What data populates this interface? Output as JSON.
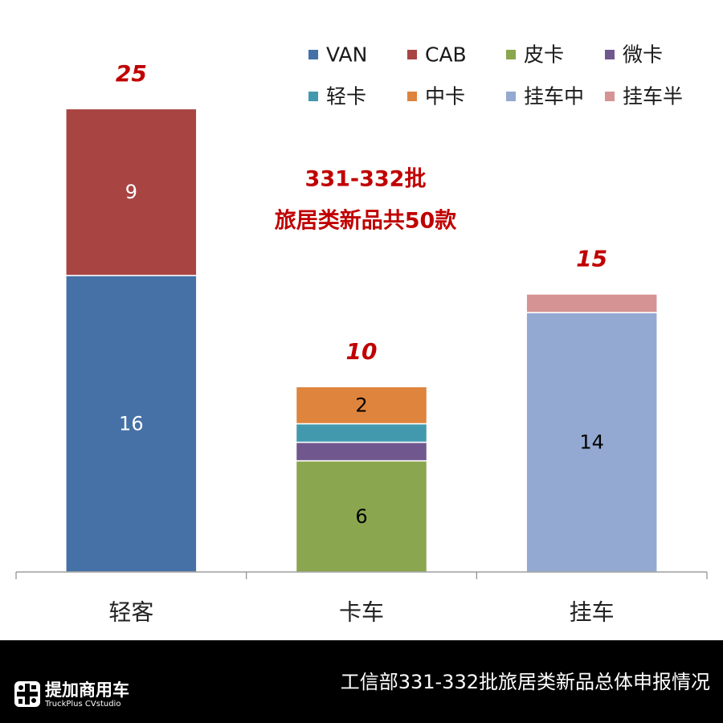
{
  "chart_data": {
    "type": "bar",
    "stacked": true,
    "categories": [
      "轻客",
      "卡车",
      "挂车"
    ],
    "series": [
      {
        "name": "VAN",
        "color": "#4571A7",
        "label_color": "#FFFFFF",
        "show_value_label": true,
        "values": [
          16,
          null,
          null
        ]
      },
      {
        "name": "CAB",
        "color": "#A84543",
        "label_color": "#FFFFFF",
        "show_value_label": true,
        "values": [
          9,
          null,
          null
        ]
      },
      {
        "name": "皮卡",
        "color": "#8AA64E",
        "label_color": "#000000",
        "show_value_label": true,
        "values": [
          null,
          6,
          null
        ]
      },
      {
        "name": "微卡",
        "color": "#70588F",
        "label_color": "#000000",
        "show_value_label": false,
        "values": [
          null,
          1,
          null
        ]
      },
      {
        "name": "轻卡",
        "color": "#4299AE",
        "label_color": "#000000",
        "show_value_label": false,
        "values": [
          null,
          1,
          null
        ]
      },
      {
        "name": "中卡",
        "color": "#DE843D",
        "label_color": "#000000",
        "show_value_label": true,
        "values": [
          null,
          2,
          null
        ]
      },
      {
        "name": "挂车中",
        "color": "#94A9D1",
        "label_color": "#000000",
        "show_value_label": true,
        "values": [
          null,
          null,
          14
        ]
      },
      {
        "name": "挂车半",
        "color": "#D59493",
        "label_color": "#000000",
        "show_value_label": false,
        "values": [
          null,
          null,
          1
        ]
      }
    ],
    "totals": [
      25,
      10,
      15
    ],
    "total_label_color": "#C00000",
    "annotation": [
      "331-332批",
      "旅居类新品共50款"
    ],
    "annotation_color": "#C00000",
    "ylim": [
      0,
      30
    ],
    "y_axis_visible": false,
    "grid": false,
    "legend_position": "top-right"
  },
  "footer": {
    "brand_name": "提加商用车",
    "brand_subtitle": "TruckPlus CVstudio",
    "caption": "工信部331-332批旅居类新品总体申报情况"
  }
}
